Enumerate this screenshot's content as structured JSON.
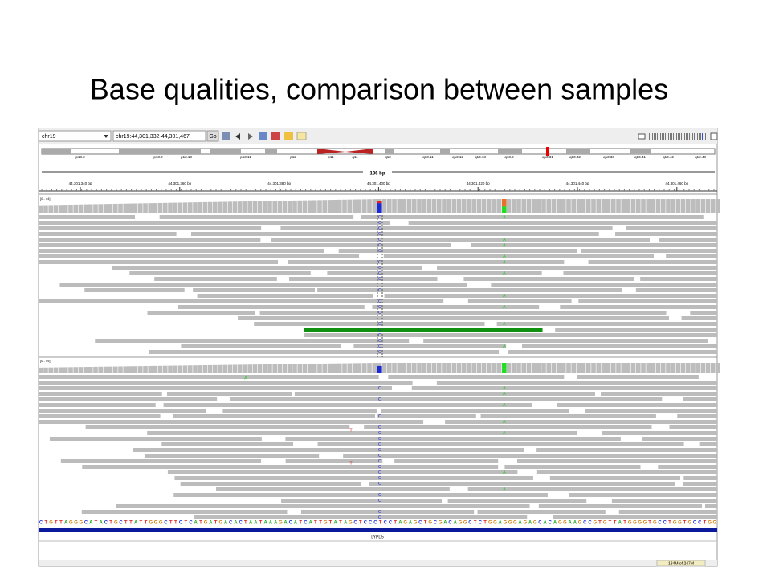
{
  "title": "Base qualities, comparison between samples",
  "toolbar": {
    "genome": "chr19",
    "locus": "chr19:44,301,332-44,301,467",
    "go": "Go"
  },
  "ideogram_bands": [
    "p13.3",
    "p13.2",
    "p13.13",
    "p13.11",
    "p12",
    "p11",
    "q11",
    "q12",
    "q13.11",
    "q13.12",
    "q13.13",
    "q13.2",
    "q13.31",
    "q13.32",
    "q13.33",
    "q13.41",
    "q13.42",
    "q13.43"
  ],
  "ruler": {
    "span": "136 bp",
    "ticks": [
      "44,301,340 bp",
      "44,301,360 bp",
      "44,301,380 bp",
      "44,301,400 bp",
      "44,301,420 bp",
      "44,301,440 bp",
      "44,301,460 bp"
    ]
  },
  "tracks": [
    {
      "range": "[0 - 44]"
    },
    {
      "range": "[0 - 49]"
    }
  ],
  "mismatch_bases": {
    "c": "C",
    "a": "A",
    "t": "T"
  },
  "sequence": "CTGTTAGGGCATACTGCTTATTGGGCTTCTCATGATGACACTAATAAAGACATCATTGTATAGCTCCCTCCTAGAGCTGCGACAGGCTCTGGAGGGAGAGCACAGGAAGCCGTGTTATGGGGTGCCTGGTGCCTGG",
  "gene": "LYPD5",
  "status": "134M of 247M"
}
